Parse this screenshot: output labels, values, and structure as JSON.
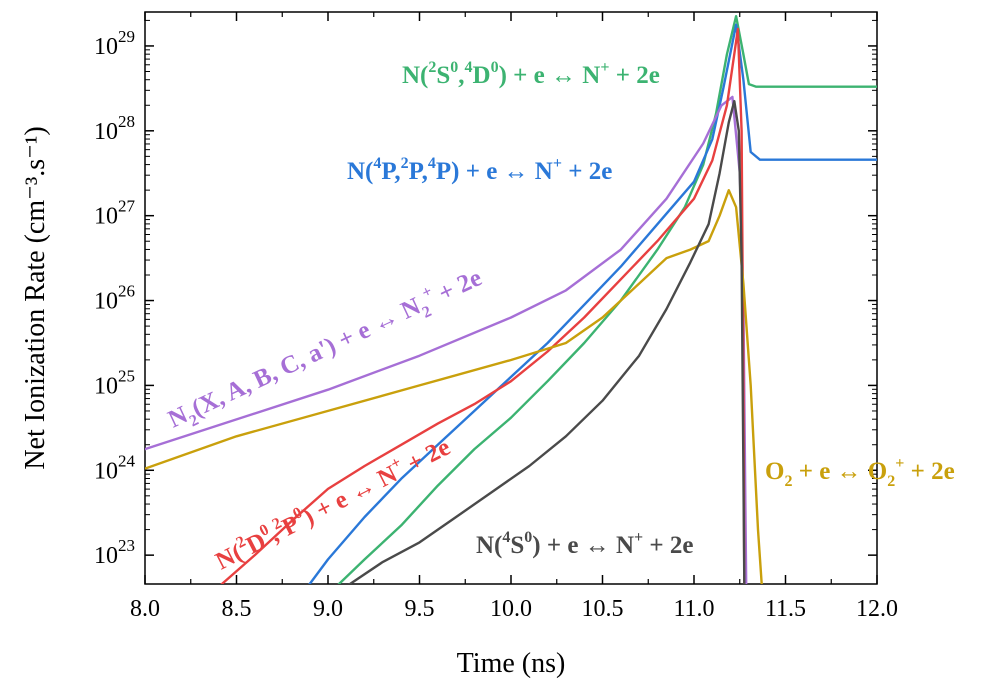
{
  "chart_data": {
    "type": "line",
    "xlabel": "Time (ns)",
    "ylabel": "Net Ionization Rate (cm⁻³.s⁻¹)",
    "xlim": [
      8.0,
      12.0
    ],
    "ylog": true,
    "ylim_exp": [
      22.66,
      29.4
    ],
    "x_ticks": [
      "8.0",
      "8.5",
      "9.0",
      "9.5",
      "10.0",
      "10.5",
      "11.0",
      "11.5",
      "12.0"
    ],
    "y_ticks": [
      {
        "base": "10",
        "exp": "23"
      },
      {
        "base": "10",
        "exp": "24"
      },
      {
        "base": "10",
        "exp": "25"
      },
      {
        "base": "10",
        "exp": "26"
      },
      {
        "base": "10",
        "exp": "27"
      },
      {
        "base": "10",
        "exp": "28"
      },
      {
        "base": "10",
        "exp": "29"
      }
    ],
    "grid": false,
    "series": [
      {
        "name": "N(²S⁰,⁴D⁰) + e ↔ N⁺ + 2e",
        "color": "#3cb371",
        "points": [
          [
            9.06,
            22.66
          ],
          [
            9.2,
            22.95
          ],
          [
            9.4,
            23.35
          ],
          [
            9.6,
            23.82
          ],
          [
            9.8,
            24.25
          ],
          [
            10.0,
            24.62
          ],
          [
            10.2,
            25.05
          ],
          [
            10.4,
            25.5
          ],
          [
            10.6,
            26.0
          ],
          [
            10.8,
            26.6
          ],
          [
            10.95,
            27.1
          ],
          [
            11.05,
            27.6
          ],
          [
            11.12,
            28.2
          ],
          [
            11.18,
            28.9
          ],
          [
            11.23,
            29.35
          ],
          [
            11.27,
            28.9
          ],
          [
            11.3,
            28.55
          ],
          [
            11.34,
            28.52
          ],
          [
            11.5,
            28.52
          ],
          [
            12.0,
            28.52
          ]
        ]
      },
      {
        "name": "N(⁴P,²P,⁴P) + e ↔ N⁺ + 2e",
        "color": "#2a78d8",
        "points": [
          [
            8.9,
            22.66
          ],
          [
            9.0,
            22.95
          ],
          [
            9.2,
            23.45
          ],
          [
            9.4,
            23.9
          ],
          [
            9.6,
            24.3
          ],
          [
            9.8,
            24.7
          ],
          [
            10.0,
            25.1
          ],
          [
            10.2,
            25.5
          ],
          [
            10.4,
            25.95
          ],
          [
            10.6,
            26.4
          ],
          [
            10.8,
            26.9
          ],
          [
            11.0,
            27.4
          ],
          [
            11.1,
            27.9
          ],
          [
            11.16,
            28.5
          ],
          [
            11.23,
            29.25
          ],
          [
            11.27,
            28.6
          ],
          [
            11.31,
            27.75
          ],
          [
            11.36,
            27.66
          ],
          [
            11.5,
            27.66
          ],
          [
            12.0,
            27.66
          ]
        ]
      },
      {
        "name": "N₂(X, A, B, C, a') + e ↔ N₂⁺ + 2e",
        "color": "#a66fd6",
        "points": [
          [
            8.0,
            24.25
          ],
          [
            8.5,
            24.6
          ],
          [
            9.0,
            24.95
          ],
          [
            9.5,
            25.35
          ],
          [
            10.0,
            25.8
          ],
          [
            10.3,
            26.12
          ],
          [
            10.6,
            26.6
          ],
          [
            10.85,
            27.2
          ],
          [
            11.05,
            27.85
          ],
          [
            11.15,
            28.3
          ],
          [
            11.21,
            28.4
          ],
          [
            11.25,
            27.5
          ],
          [
            11.27,
            26.0
          ],
          [
            11.28,
            23.8
          ],
          [
            11.285,
            22.66
          ]
        ]
      },
      {
        "name": "N(²D⁰,²P⁰) + e ↔ N⁺ + 2e",
        "color": "#e84040",
        "points": [
          [
            8.42,
            22.66
          ],
          [
            8.6,
            23.0
          ],
          [
            8.8,
            23.4
          ],
          [
            9.0,
            23.78
          ],
          [
            9.2,
            24.05
          ],
          [
            9.4,
            24.3
          ],
          [
            9.6,
            24.55
          ],
          [
            9.8,
            24.78
          ],
          [
            10.0,
            25.05
          ],
          [
            10.2,
            25.4
          ],
          [
            10.4,
            25.8
          ],
          [
            10.6,
            26.25
          ],
          [
            10.8,
            26.7
          ],
          [
            11.0,
            27.2
          ],
          [
            11.1,
            27.65
          ],
          [
            11.18,
            28.3
          ],
          [
            11.24,
            29.2
          ],
          [
            11.26,
            28.0
          ],
          [
            11.27,
            25.0
          ],
          [
            11.275,
            22.66
          ]
        ]
      },
      {
        "name": "O₂ + e ↔ O₂⁺ + 2e",
        "color": "#c9a00c",
        "points": [
          [
            8.0,
            24.02
          ],
          [
            8.5,
            24.4
          ],
          [
            9.0,
            24.7
          ],
          [
            9.5,
            25.0
          ],
          [
            10.0,
            25.3
          ],
          [
            10.3,
            25.5
          ],
          [
            10.5,
            25.8
          ],
          [
            10.7,
            26.2
          ],
          [
            10.85,
            26.5
          ],
          [
            10.98,
            26.6
          ],
          [
            11.08,
            26.7
          ],
          [
            11.14,
            27.0
          ],
          [
            11.19,
            27.3
          ],
          [
            11.23,
            27.1
          ],
          [
            11.27,
            26.2
          ],
          [
            11.31,
            25.0
          ],
          [
            11.35,
            23.3
          ],
          [
            11.37,
            22.66
          ]
        ]
      },
      {
        "name": "N(⁴S⁰) + e ↔ N⁺ + 2e",
        "color": "#4a4a4a",
        "points": [
          [
            9.12,
            22.66
          ],
          [
            9.3,
            22.92
          ],
          [
            9.5,
            23.15
          ],
          [
            9.7,
            23.45
          ],
          [
            9.9,
            23.75
          ],
          [
            10.1,
            24.05
          ],
          [
            10.3,
            24.4
          ],
          [
            10.5,
            24.82
          ],
          [
            10.7,
            25.35
          ],
          [
            10.85,
            25.9
          ],
          [
            10.98,
            26.45
          ],
          [
            11.08,
            26.9
          ],
          [
            11.14,
            27.5
          ],
          [
            11.19,
            28.1
          ],
          [
            11.22,
            28.35
          ],
          [
            11.245,
            28.0
          ],
          [
            11.26,
            26.5
          ],
          [
            11.27,
            24.0
          ],
          [
            11.275,
            22.66
          ]
        ]
      }
    ],
    "annotations": [
      {
        "id": "green",
        "color": "#3cb371",
        "text": "N(²S⁰,⁴D⁰) + e ↔ N⁺ + 2e"
      },
      {
        "id": "blue",
        "color": "#2a78d8",
        "text": "N(⁴P,²P,⁴P) + e ↔ N⁺ + 2e"
      },
      {
        "id": "purple",
        "color": "#a66fd6",
        "text": "N₂(X, A, B, C, a') + e ↔ N₂⁺ + 2e"
      },
      {
        "id": "red",
        "color": "#e84040",
        "text": "N(²D⁰,²P⁰) + e ↔ N⁺ + 2e"
      },
      {
        "id": "gray",
        "color": "#4a4a4a",
        "text": "N(⁴S⁰) + e ↔ N⁺ + 2e"
      },
      {
        "id": "gold",
        "color": "#c9a00c",
        "text": "O₂ + e ↔ O₂⁺ + 2e"
      }
    ]
  }
}
